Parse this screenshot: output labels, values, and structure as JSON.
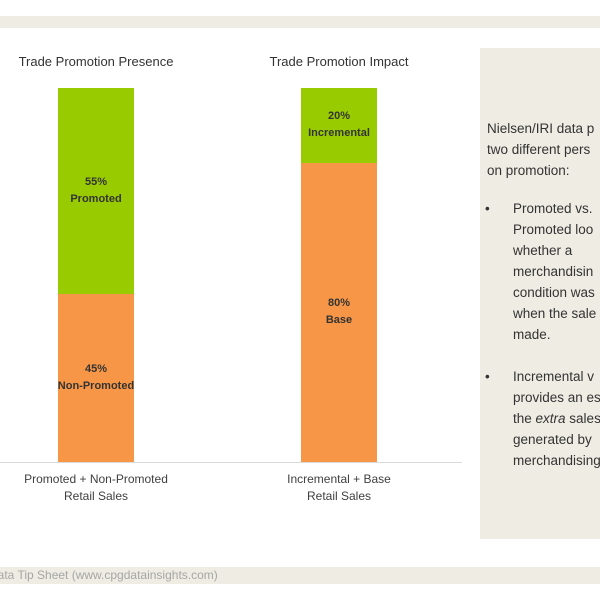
{
  "footer": "Data Tip Sheet (www.cpgdatainsights.com)",
  "chart_data": [
    {
      "type": "bar",
      "stacked": true,
      "title": "Trade Promotion Presence",
      "category_lines": [
        "Promoted + Non-Promoted",
        "Retail Sales"
      ],
      "series": [
        {
          "name": "Non-Promoted",
          "value": 45,
          "label_pct": "45%",
          "color": "#f79646"
        },
        {
          "name": "Promoted",
          "value": 55,
          "label_pct": "55%",
          "color": "#99cc00"
        }
      ]
    },
    {
      "type": "bar",
      "stacked": true,
      "title": "Trade Promotion Impact",
      "category_lines": [
        "Incremental + Base",
        "Retail Sales"
      ],
      "series": [
        {
          "name": "Base",
          "value": 80,
          "label_pct": "80%",
          "color": "#f79646"
        },
        {
          "name": "Incremental",
          "value": 20,
          "label_pct": "20%",
          "color": "#99cc00"
        }
      ]
    }
  ],
  "side_panel": {
    "intro_lines": [
      "Nielsen/IRI data p",
      "two different pers",
      "on promotion:"
    ],
    "bullets": [
      {
        "symbol": "•",
        "lines": [
          "Promoted vs.",
          "Promoted loo",
          "whether a",
          "merchandisin",
          "condition was",
          "when the sale",
          "made."
        ]
      },
      {
        "symbol": "•",
        "lines": [
          "Incremental v",
          "provides an es",
          "the <i>extra</i> sales",
          "generated by",
          "merchandising"
        ]
      }
    ]
  }
}
